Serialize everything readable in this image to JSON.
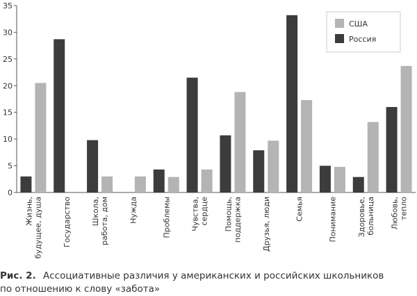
{
  "chart_data": {
    "type": "bar",
    "caption_label": "Рис. 2.",
    "title": "Ассоциативные различия у американских и российских школьников по отношению к слову «забота»",
    "categories": [
      [
        "Жизнь,",
        "будущее, душа"
      ],
      [
        "Государство"
      ],
      [
        "Школа,",
        "работа, дом"
      ],
      [
        "Нужда"
      ],
      [
        "Проблемы"
      ],
      [
        "Чувства,",
        "сердце"
      ],
      [
        "Помощь,",
        "поддержка"
      ],
      [
        "Друзья, люди"
      ],
      [
        "Семья"
      ],
      [
        "Понимание"
      ],
      [
        "Здоровье,",
        "больница"
      ],
      [
        "Любовь,",
        "тепло"
      ]
    ],
    "series": [
      {
        "name": "США",
        "color": "#b4b4b4",
        "values": [
          20.5,
          0,
          3,
          3,
          2.9,
          4.3,
          18.8,
          9.7,
          17.3,
          4.8,
          13.2,
          23.7
        ]
      },
      {
        "name": "Россия",
        "color": "#3c3c3c",
        "values": [
          3,
          28.7,
          9.8,
          0,
          4.3,
          21.5,
          10.7,
          7.9,
          33.2,
          5,
          2.9,
          16
        ]
      }
    ],
    "ylim": [
      0,
      35
    ],
    "yticks": [
      0,
      5,
      10,
      15,
      20,
      25,
      30,
      35
    ],
    "grid": false,
    "legend": "upper right"
  }
}
